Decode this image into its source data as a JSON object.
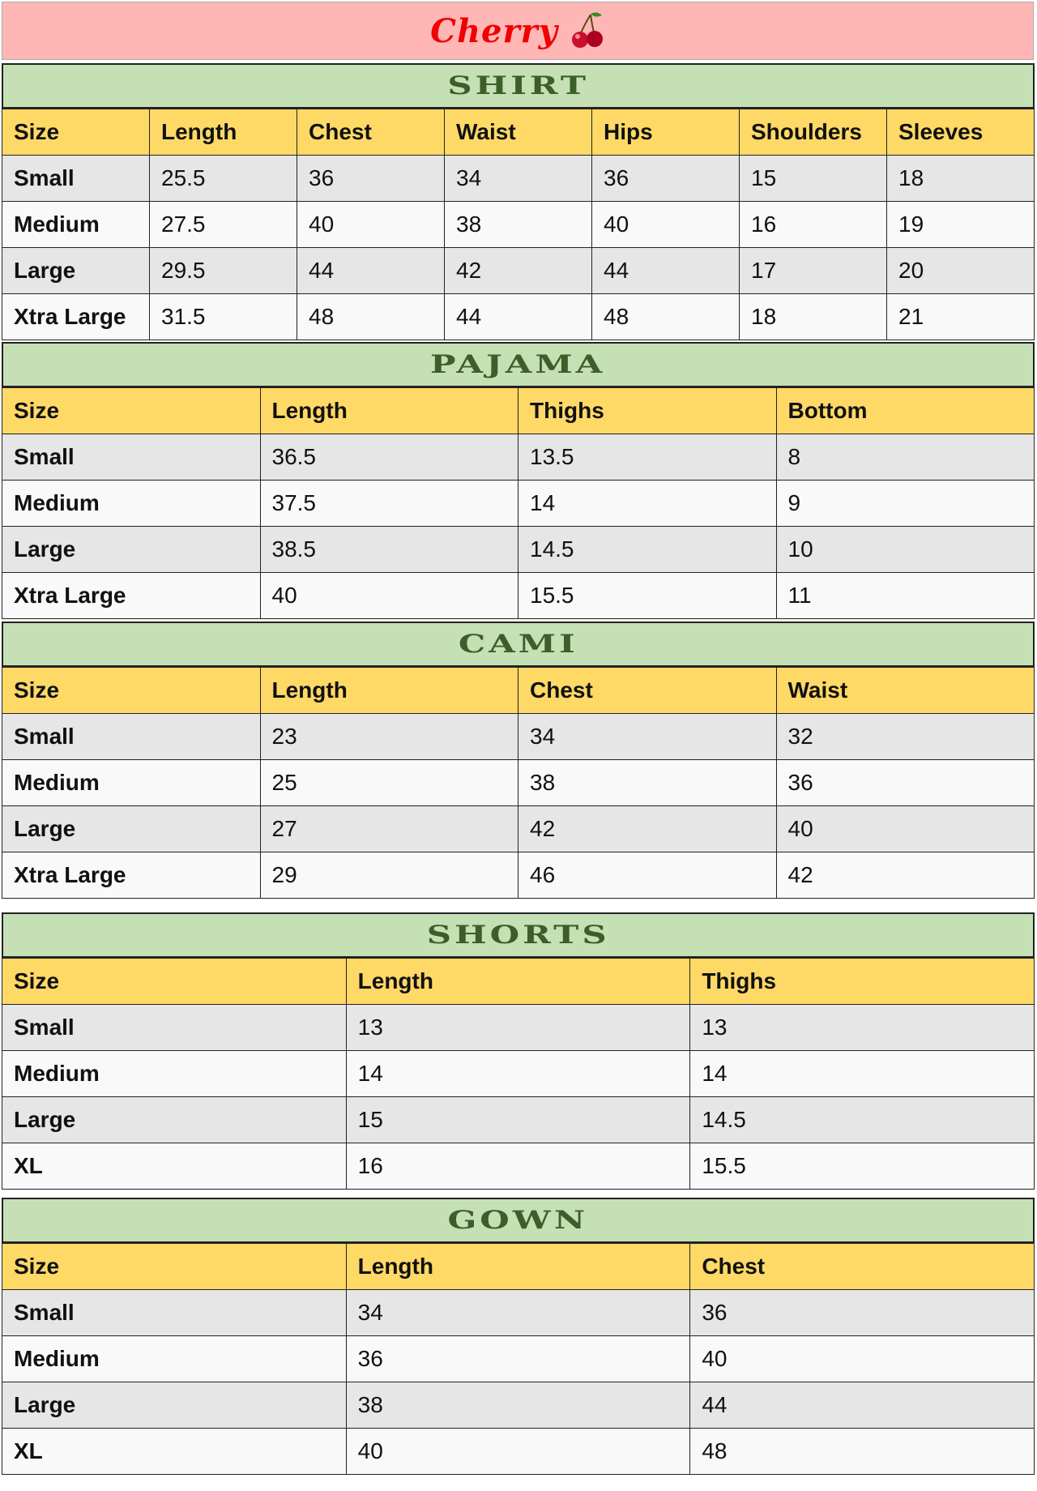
{
  "title": "Cherry",
  "colors": {
    "title_bg": "#FFB7B6",
    "title_text": "#F00000",
    "band_bg": "#C5E0B4",
    "band_text": "#3C5E2A",
    "header_bg": "#FFD966",
    "row_odd": "#E7E6E6",
    "row_even": "#F9F9F9"
  },
  "tables": [
    {
      "name": "SHIRT",
      "columns": [
        "Size",
        "Length",
        "Chest",
        "Waist",
        "Hips",
        "Shoulders",
        "Sleeves"
      ],
      "rows": [
        [
          "Small",
          "25.5",
          "36",
          "34",
          "36",
          "15",
          "18"
        ],
        [
          "Medium",
          "27.5",
          "40",
          "38",
          "40",
          "16",
          "19"
        ],
        [
          "Large",
          "29.5",
          "44",
          "42",
          "44",
          "17",
          "20"
        ],
        [
          "Xtra Large",
          "31.5",
          "48",
          "44",
          "48",
          "18",
          "21"
        ]
      ]
    },
    {
      "name": "PAJAMA",
      "columns": [
        "Size",
        "Length",
        "Thighs",
        "Bottom"
      ],
      "rows": [
        [
          "Small",
          "36.5",
          "13.5",
          "8"
        ],
        [
          "Medium",
          "37.5",
          "14",
          "9"
        ],
        [
          "Large",
          "38.5",
          "14.5",
          "10"
        ],
        [
          "Xtra Large",
          "40",
          "15.5",
          "11"
        ]
      ]
    },
    {
      "name": "CAMI",
      "columns": [
        "Size",
        "Length",
        "Chest",
        "Waist"
      ],
      "rows": [
        [
          "Small",
          "23",
          "34",
          "32"
        ],
        [
          "Medium",
          "25",
          "38",
          "36"
        ],
        [
          "Large",
          "27",
          "42",
          "40"
        ],
        [
          "Xtra Large",
          "29",
          "46",
          "42"
        ]
      ]
    },
    {
      "name": "SHORTS",
      "columns": [
        "Size",
        "Length",
        "Thighs"
      ],
      "rows": [
        [
          "Small",
          "13",
          "13"
        ],
        [
          "Medium",
          "14",
          "14"
        ],
        [
          "Large",
          "15",
          "14.5"
        ],
        [
          "XL",
          "16",
          "15.5"
        ]
      ]
    },
    {
      "name": "GOWN",
      "columns": [
        "Size",
        "Length",
        "Chest"
      ],
      "rows": [
        [
          "Small",
          "34",
          "36"
        ],
        [
          "Medium",
          "36",
          "40"
        ],
        [
          "Large",
          "38",
          "44"
        ],
        [
          "XL",
          "40",
          "48"
        ]
      ]
    }
  ]
}
